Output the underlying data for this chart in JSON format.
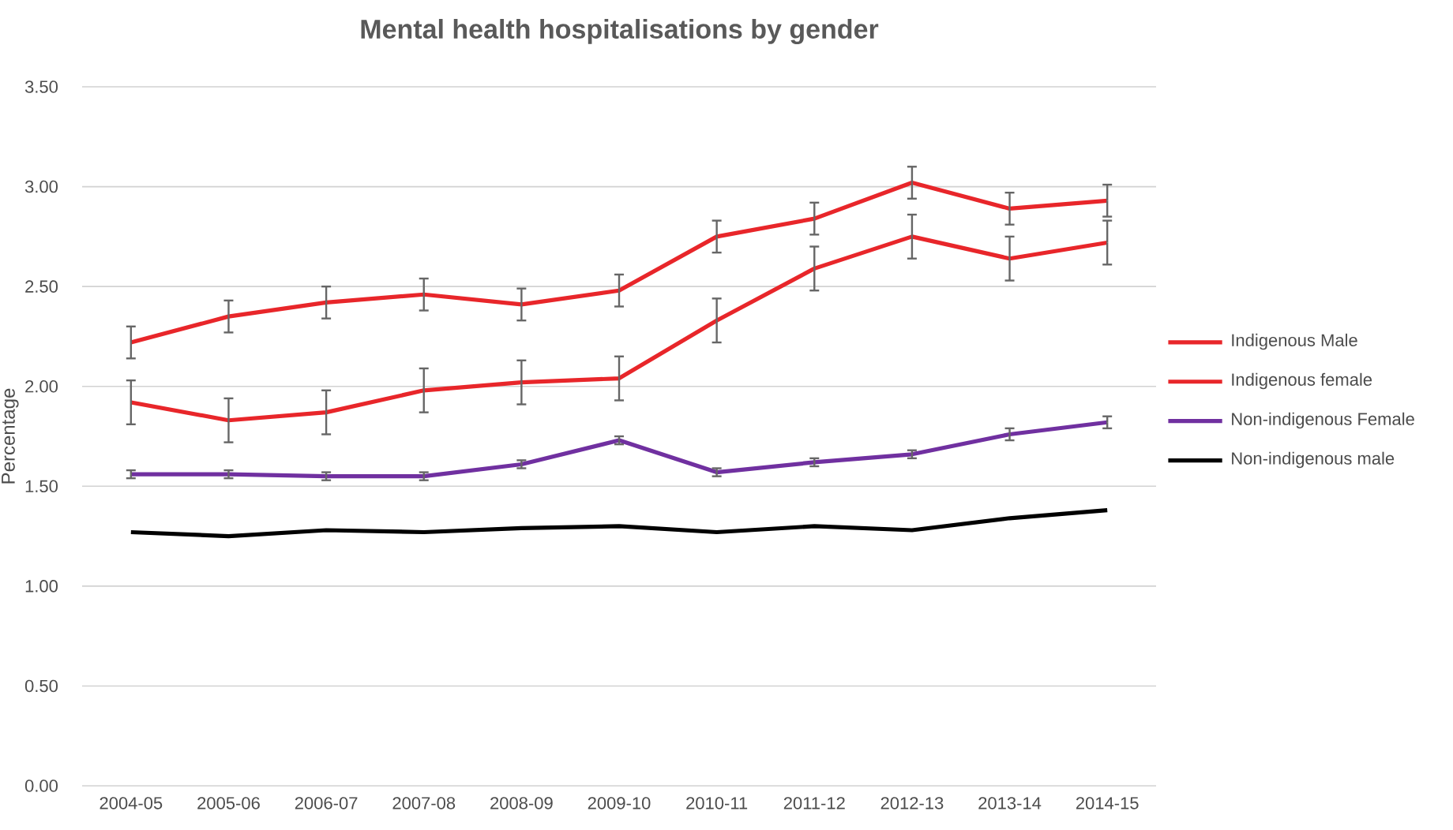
{
  "chart_data": {
    "type": "line",
    "title": "Mental health hospitalisations by gender",
    "ylabel": "Percentage",
    "categories": [
      "2004-05",
      "2005-06",
      "2006-07",
      "2007-08",
      "2008-09",
      "2009-10",
      "2010-11",
      "2011-12",
      "2012-13",
      "2013-14",
      "2014-15"
    ],
    "series": [
      {
        "name": "Indigenous Male",
        "color": "#e8262a",
        "values": [
          2.22,
          2.35,
          2.42,
          2.46,
          2.41,
          2.48,
          2.75,
          2.84,
          3.02,
          2.89,
          2.93
        ],
        "errors": [
          0.08,
          0.08,
          0.08,
          0.08,
          0.08,
          0.08,
          0.08,
          0.08,
          0.08,
          0.08,
          0.08
        ]
      },
      {
        "name": "Indigenous female",
        "color": "#e8262a",
        "values": [
          1.92,
          1.83,
          1.87,
          1.98,
          2.02,
          2.04,
          2.33,
          2.59,
          2.75,
          2.64,
          2.72
        ],
        "errors": [
          0.11,
          0.11,
          0.11,
          0.11,
          0.11,
          0.11,
          0.11,
          0.11,
          0.11,
          0.11,
          0.11
        ]
      },
      {
        "name": "Non-indigenous Female",
        "color": "#7030a0",
        "values": [
          1.56,
          1.56,
          1.55,
          1.55,
          1.61,
          1.73,
          1.57,
          1.62,
          1.66,
          1.76,
          1.82
        ],
        "errors": [
          0.02,
          0.02,
          0.02,
          0.02,
          0.02,
          0.02,
          0.02,
          0.02,
          0.02,
          0.03,
          0.03
        ]
      },
      {
        "name": "Non-indigenous male",
        "color": "#000000",
        "values": [
          1.27,
          1.25,
          1.28,
          1.27,
          1.29,
          1.3,
          1.27,
          1.3,
          1.28,
          1.34,
          1.38
        ]
      }
    ],
    "ylim": [
      0,
      3.5
    ],
    "yticks": [
      {
        "value": 0,
        "label": "0.00"
      },
      {
        "value": 0.5,
        "label": "0.50"
      },
      {
        "value": 1,
        "label": "1.00"
      },
      {
        "value": 1.5,
        "label": "1.50"
      },
      {
        "value": 2,
        "label": "2.00"
      },
      {
        "value": 2.5,
        "label": "2.50"
      },
      {
        "value": 3,
        "label": "3.00"
      },
      {
        "value": 3.5,
        "label": "3.50"
      }
    ],
    "grid": "y",
    "legend": "right",
    "marker": "none",
    "line_style": "solid"
  }
}
